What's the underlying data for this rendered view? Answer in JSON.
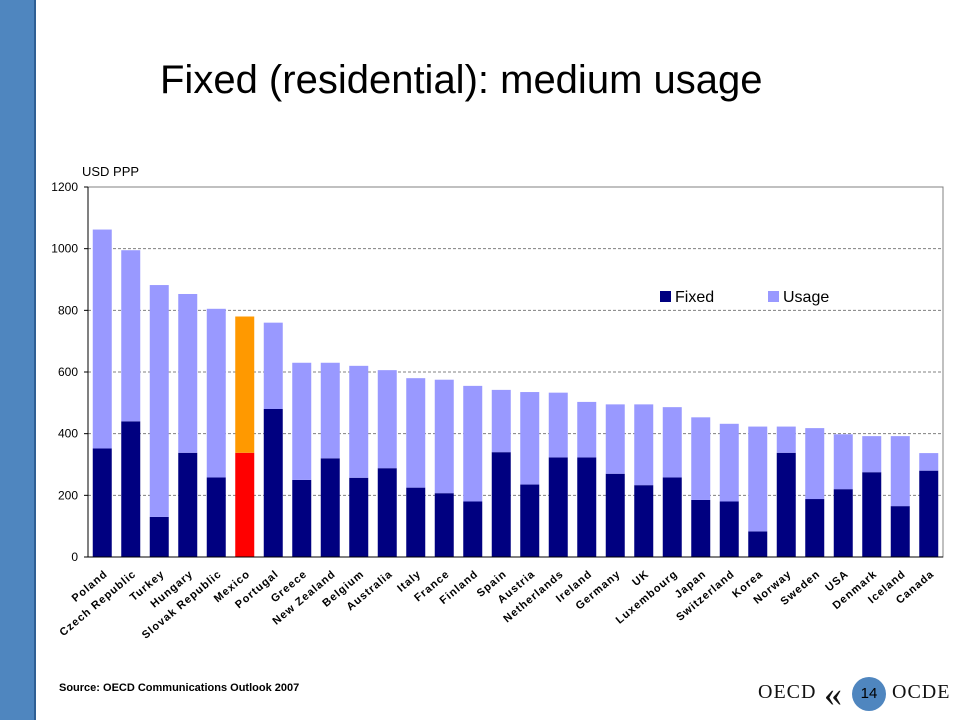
{
  "slide": {
    "title": "Fixed (residential): medium usage",
    "source": "Source: OECD Communications Outlook 2007",
    "page_number": "14",
    "logo_left": "OECD",
    "logo_right": "OCDE",
    "colors": {
      "side_bar": "#4f86bf"
    }
  },
  "chart_data": {
    "type": "bar",
    "stacked": true,
    "ylabel": "USD PPP",
    "ylim": [
      0,
      1200
    ],
    "yticks": [
      0,
      200,
      400,
      600,
      800,
      1000,
      1200
    ],
    "grid": true,
    "legend_position": "top-right",
    "categories": [
      "Poland",
      "Czech Republic",
      "Turkey",
      "Hungary",
      "Slovak Republic",
      "Mexico",
      "Portugal",
      "Greece",
      "New Zealand",
      "Belgium",
      "Australia",
      "Italy",
      "France",
      "Finland",
      "Spain",
      "Austria",
      "Netherlands",
      "Ireland",
      "Germany",
      "UK",
      "Luxembourg",
      "Japan",
      "Switzerland",
      "Korea",
      "Norway",
      "Sweden",
      "USA",
      "Denmark",
      "Iceland",
      "Canada"
    ],
    "series": [
      {
        "name": "Fixed",
        "color": "#000080",
        "highlight_color": "#ff0000",
        "values": [
          352,
          440,
          130,
          338,
          258,
          338,
          480,
          250,
          320,
          257,
          288,
          225,
          207,
          180,
          340,
          235,
          323,
          323,
          270,
          233,
          258,
          185,
          180,
          83,
          338,
          188,
          220,
          275,
          165,
          280
        ]
      },
      {
        "name": "Usage",
        "color": "#9999ff",
        "highlight_color": "#ff9900",
        "values": [
          710,
          555,
          752,
          515,
          547,
          442,
          280,
          380,
          310,
          363,
          318,
          355,
          368,
          375,
          202,
          300,
          210,
          180,
          225,
          262,
          228,
          268,
          252,
          340,
          85,
          230,
          178,
          117,
          227,
          57
        ]
      }
    ],
    "highlight_category": "Mexico"
  }
}
